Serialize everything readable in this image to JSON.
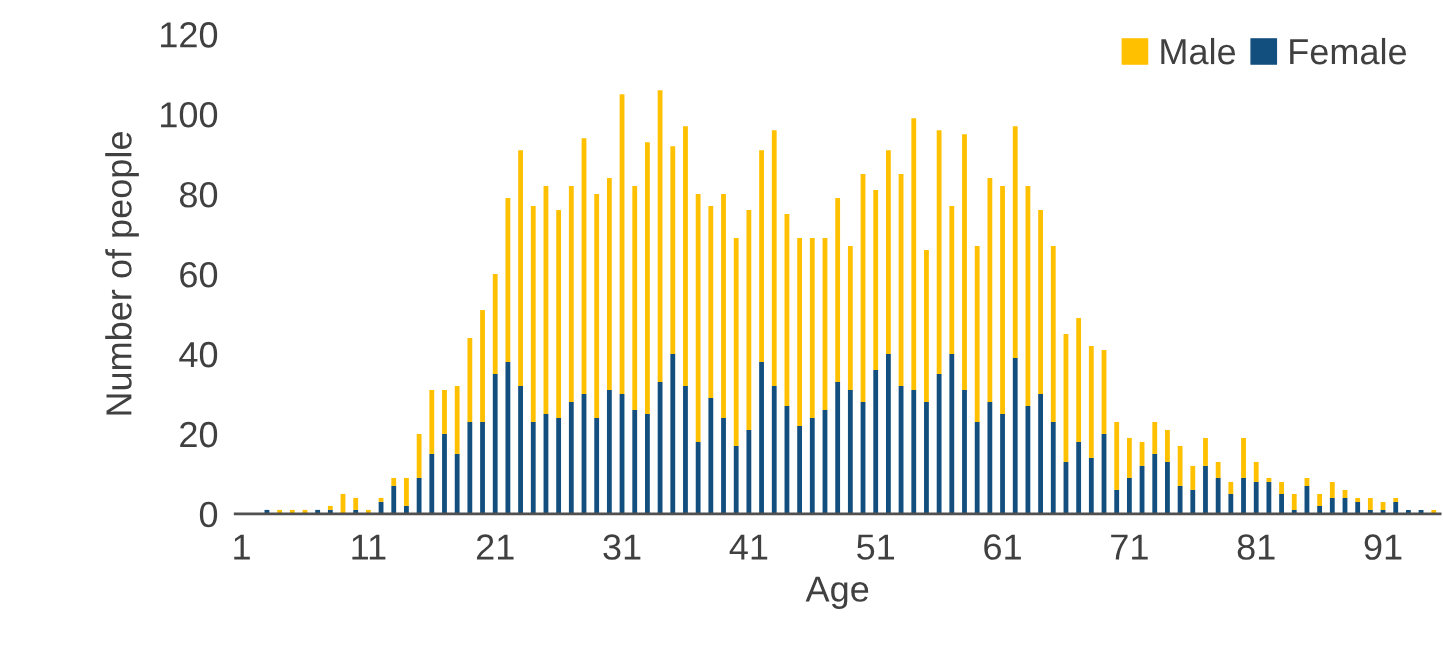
{
  "chart_data": {
    "type": "bar",
    "xlabel": "Age",
    "ylabel": "Number of people",
    "categories": [
      "1",
      null,
      null,
      null,
      null,
      null,
      null,
      null,
      null,
      null,
      "11",
      null,
      null,
      null,
      null,
      null,
      null,
      null,
      null,
      null,
      "21",
      null,
      null,
      null,
      null,
      null,
      null,
      null,
      null,
      null,
      "31",
      null,
      null,
      null,
      null,
      null,
      null,
      null,
      null,
      null,
      "41",
      null,
      null,
      null,
      null,
      null,
      null,
      null,
      null,
      null,
      "51",
      null,
      null,
      null,
      null,
      null,
      null,
      null,
      null,
      null,
      "61",
      null,
      null,
      null,
      null,
      null,
      null,
      null,
      null,
      null,
      "71",
      null,
      null,
      null,
      null,
      null,
      null,
      null,
      null,
      null,
      "81",
      null,
      null,
      null,
      null,
      null,
      null,
      null,
      null,
      null,
      "91",
      null,
      null,
      null,
      null
    ],
    "stacked": true,
    "series": [
      {
        "name": "Female",
        "color": "#124f7e",
        "values": [
          0,
          0,
          1,
          0,
          0,
          0,
          1,
          1,
          0,
          1,
          0,
          3,
          7,
          2,
          9,
          15,
          20,
          15,
          23,
          23,
          35,
          38,
          32,
          23,
          25,
          24,
          28,
          30,
          24,
          31,
          30,
          26,
          25,
          33,
          40,
          32,
          18,
          29,
          24,
          17,
          21,
          38,
          32,
          27,
          22,
          24,
          26,
          33,
          31,
          28,
          36,
          40,
          32,
          31,
          28,
          35,
          40,
          31,
          23,
          28,
          25,
          39,
          27,
          30,
          23,
          13,
          18,
          14,
          20,
          6,
          9,
          12,
          15,
          13,
          7,
          6,
          12,
          9,
          5,
          9,
          8,
          8,
          5,
          1,
          7,
          2,
          4,
          4,
          3,
          1,
          1,
          3,
          1,
          1,
          0
        ]
      },
      {
        "name": "Male",
        "color": "#ffc000",
        "values": [
          0,
          0,
          0,
          1,
          1,
          1,
          0,
          1,
          5,
          3,
          1,
          1,
          2,
          7,
          11,
          16,
          11,
          17,
          21,
          28,
          25,
          41,
          59,
          54,
          57,
          52,
          54,
          64,
          56,
          53,
          75,
          56,
          68,
          73,
          52,
          65,
          62,
          48,
          56,
          52,
          55,
          53,
          64,
          48,
          47,
          45,
          43,
          46,
          36,
          57,
          45,
          51,
          53,
          68,
          38,
          61,
          37,
          64,
          44,
          56,
          57,
          58,
          55,
          46,
          44,
          32,
          31,
          28,
          21,
          17,
          10,
          6,
          8,
          8,
          10,
          6,
          7,
          4,
          3,
          10,
          5,
          1,
          3,
          4,
          2,
          3,
          4,
          2,
          1,
          3,
          2,
          1,
          0,
          0,
          1
        ]
      }
    ],
    "ylim": [
      0,
      120
    ],
    "yticks": [
      0,
      20,
      40,
      60,
      80,
      100,
      120
    ],
    "legend": "top right"
  }
}
